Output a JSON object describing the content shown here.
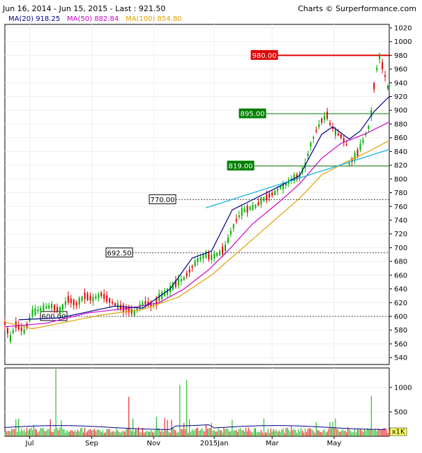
{
  "header": {
    "title": "Jun 16, 2014 - Jun 15, 2015 - Last : 921.50",
    "credit": "Charts © Surperformance.com"
  },
  "legend": [
    {
      "label": "MA(20)",
      "value": "918.25",
      "color": "#00008b"
    },
    {
      "label": "MA(50)",
      "value": "882.84",
      "color": "#cc00cc"
    },
    {
      "label": "MA(100)",
      "value": "854.80",
      "color": "#e0a000"
    }
  ],
  "chart_data": {
    "type": "candlestick",
    "x_tick_labels": [
      "Jul",
      "Sep",
      "Nov",
      "2015Jan",
      "Mar",
      "May"
    ],
    "y_ticks": [
      540,
      560,
      580,
      600,
      620,
      640,
      660,
      680,
      700,
      720,
      740,
      760,
      780,
      800,
      820,
      840,
      860,
      880,
      900,
      920,
      940,
      960,
      980,
      1000,
      1020
    ],
    "ylim": [
      530,
      1025
    ],
    "levels": [
      {
        "value": 980,
        "label": "980.00",
        "style": "red"
      },
      {
        "value": 895,
        "label": "895.00",
        "style": "green"
      },
      {
        "value": 819,
        "label": "819.00",
        "style": "green"
      },
      {
        "value": 770,
        "label": "770.00",
        "style": "dashed"
      },
      {
        "value": 692.5,
        "label": "692.50",
        "style": "dashed"
      },
      {
        "value": 600,
        "label": "600.00",
        "style": "dashed"
      }
    ],
    "price_path": [
      [
        0,
        590
      ],
      [
        4,
        568
      ],
      [
        8,
        588
      ],
      [
        14,
        578
      ],
      [
        20,
        605
      ],
      [
        28,
        612
      ],
      [
        34,
        615
      ],
      [
        40,
        608
      ],
      [
        46,
        625
      ],
      [
        52,
        618
      ],
      [
        58,
        630
      ],
      [
        64,
        625
      ],
      [
        70,
        632
      ],
      [
        78,
        620
      ],
      [
        82,
        615
      ],
      [
        86,
        612
      ],
      [
        90,
        610
      ],
      [
        94,
        605
      ],
      [
        98,
        615
      ],
      [
        102,
        620
      ],
      [
        108,
        616
      ],
      [
        112,
        628
      ],
      [
        118,
        636
      ],
      [
        124,
        648
      ],
      [
        130,
        655
      ],
      [
        136,
        672
      ],
      [
        140,
        682
      ],
      [
        146,
        690
      ],
      [
        150,
        686
      ],
      [
        156,
        692
      ],
      [
        160,
        700
      ],
      [
        164,
        722
      ],
      [
        168,
        740
      ],
      [
        172,
        752
      ],
      [
        176,
        756
      ],
      [
        182,
        760
      ],
      [
        186,
        768
      ],
      [
        192,
        776
      ],
      [
        196,
        780
      ],
      [
        200,
        788
      ],
      [
        204,
        792
      ],
      [
        208,
        800
      ],
      [
        214,
        805
      ],
      [
        218,
        820
      ],
      [
        222,
        850
      ],
      [
        226,
        870
      ],
      [
        230,
        885
      ],
      [
        234,
        893
      ],
      [
        236,
        880
      ],
      [
        240,
        868
      ],
      [
        244,
        862
      ],
      [
        248,
        850
      ],
      [
        250,
        822
      ],
      [
        252,
        828
      ],
      [
        256,
        838
      ],
      [
        260,
        855
      ],
      [
        264,
        875
      ],
      [
        266,
        895
      ],
      [
        268,
        935
      ],
      [
        270,
        960
      ],
      [
        272,
        978
      ],
      [
        274,
        965
      ],
      [
        276,
        950
      ],
      [
        279,
        925
      ]
    ],
    "ma20": [
      [
        10,
        595
      ],
      [
        40,
        598
      ],
      [
        80,
        615
      ],
      [
        100,
        612
      ],
      [
        120,
        640
      ],
      [
        136,
        685
      ],
      [
        150,
        695
      ],
      [
        165,
        755
      ],
      [
        180,
        770
      ],
      [
        200,
        790
      ],
      [
        214,
        805
      ],
      [
        222,
        835
      ],
      [
        230,
        865
      ],
      [
        238,
        876
      ],
      [
        250,
        858
      ],
      [
        258,
        870
      ],
      [
        268,
        898
      ],
      [
        279,
        920
      ]
    ],
    "ma50": [
      [
        0,
        585
      ],
      [
        30,
        590
      ],
      [
        60,
        605
      ],
      [
        90,
        612
      ],
      [
        112,
        620
      ],
      [
        130,
        640
      ],
      [
        148,
        668
      ],
      [
        164,
        700
      ],
      [
        180,
        735
      ],
      [
        200,
        768
      ],
      [
        214,
        793
      ],
      [
        230,
        830
      ],
      [
        244,
        852
      ],
      [
        262,
        866
      ],
      [
        279,
        883
      ]
    ],
    "ma100": [
      [
        0,
        592
      ],
      [
        20,
        582
      ],
      [
        40,
        590
      ],
      [
        70,
        602
      ],
      [
        100,
        610
      ],
      [
        126,
        628
      ],
      [
        150,
        660
      ],
      [
        170,
        695
      ],
      [
        190,
        730
      ],
      [
        214,
        772
      ],
      [
        230,
        806
      ],
      [
        248,
        825
      ],
      [
        264,
        840
      ],
      [
        279,
        856
      ]
    ],
    "trendline": [
      [
        146,
        758
      ],
      [
        279,
        843
      ]
    ],
    "volume": {
      "y_ticks": [
        500,
        1000
      ],
      "ylim": [
        0,
        1400
      ],
      "unit_label": "x1K",
      "notable_spikes": [
        {
          "x": 37,
          "value": 1380
        },
        {
          "x": 127,
          "value": 1050
        },
        {
          "x": 132,
          "value": 1150
        },
        {
          "x": 90,
          "value": 810
        },
        {
          "x": 266,
          "value": 830
        }
      ]
    }
  }
}
